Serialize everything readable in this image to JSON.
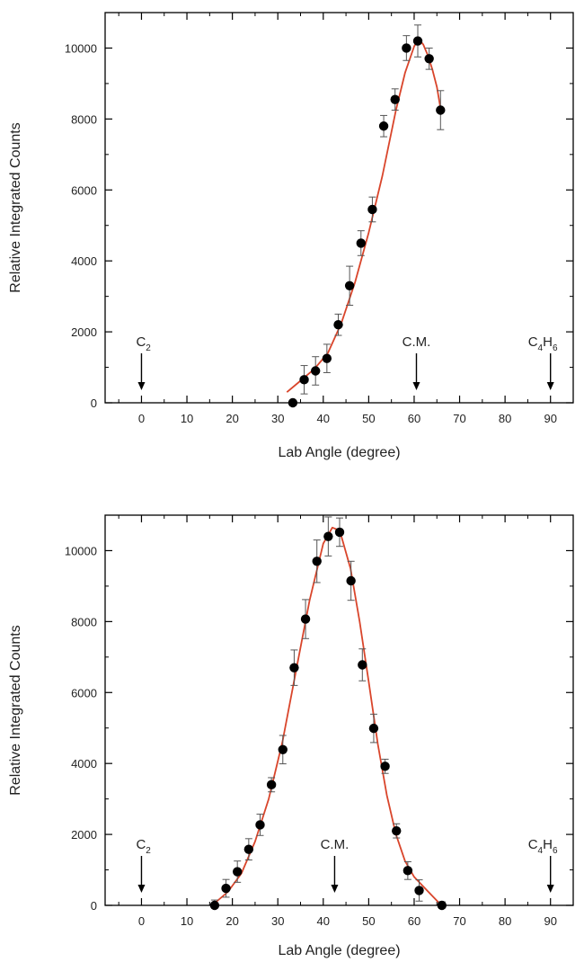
{
  "chart_data": [
    {
      "type": "scatter",
      "title": "",
      "xlabel": "Lab Angle (degree)",
      "ylabel": "Relative Integrated Counts",
      "xlim": [
        -8,
        95
      ],
      "ylim": [
        0,
        11000
      ],
      "xticks": [
        0,
        10,
        20,
        30,
        40,
        50,
        60,
        70,
        80,
        90
      ],
      "yticks": [
        0,
        2000,
        4000,
        6000,
        8000,
        10000
      ],
      "grid": false,
      "colors": {
        "points": "#000000",
        "fit": "#d9452b",
        "axes": "#000000"
      },
      "series": [
        {
          "kind": "points_with_error_bars",
          "x": [
            33.3,
            35.8,
            38.3,
            40.8,
            43.3,
            45.8,
            48.3,
            50.8,
            53.3,
            55.8,
            58.3,
            60.8,
            63.3,
            65.8
          ],
          "y": [
            0,
            650,
            900,
            1250,
            2200,
            3300,
            4500,
            5450,
            7800,
            8550,
            10000,
            10200,
            9700,
            8250
          ],
          "err": [
            0,
            400,
            400,
            400,
            300,
            550,
            350,
            350,
            300,
            300,
            350,
            450,
            300,
            550
          ]
        },
        {
          "kind": "fit_line",
          "x": [
            32,
            35,
            38,
            41,
            44,
            47,
            50,
            53,
            56,
            58,
            60,
            61,
            62,
            63,
            64,
            65,
            65.8
          ],
          "y": [
            300,
            620,
            950,
            1400,
            2250,
            3400,
            4800,
            6400,
            8250,
            9300,
            10050,
            10250,
            10100,
            9800,
            9400,
            8900,
            8300
          ]
        }
      ],
      "annotations": [
        {
          "main": "C",
          "sub": "2",
          "x": 0
        },
        {
          "main": "C.M.",
          "sub": "",
          "x": 60.5
        },
        {
          "main": "C",
          "sub": "4",
          "main2": "H",
          "sub2": "6",
          "x": 90
        }
      ]
    },
    {
      "type": "scatter",
      "title": "",
      "xlabel": "Lab Angle (degree)",
      "ylabel": "Relative Integrated Counts",
      "xlim": [
        -8,
        95
      ],
      "ylim": [
        0,
        11000
      ],
      "xticks": [
        0,
        10,
        20,
        30,
        40,
        50,
        60,
        70,
        80,
        90
      ],
      "yticks": [
        0,
        2000,
        4000,
        6000,
        8000,
        10000
      ],
      "grid": false,
      "colors": {
        "points": "#000000",
        "fit": "#d9452b",
        "axes": "#000000"
      },
      "series": [
        {
          "kind": "points_with_error_bars",
          "x": [
            16.1,
            18.6,
            21.1,
            23.6,
            26.1,
            28.6,
            31.1,
            33.6,
            36.1,
            38.6,
            41.1,
            43.6,
            46.1,
            48.6,
            51.1,
            53.6,
            56.1,
            58.6,
            61.1,
            66.1
          ],
          "y": [
            0,
            480,
            950,
            1580,
            2270,
            3400,
            4390,
            6700,
            8070,
            9700,
            10400,
            10520,
            9150,
            6780,
            4990,
            3920,
            2100,
            980,
            420,
            0
          ],
          "err": [
            150,
            250,
            300,
            300,
            300,
            200,
            400,
            500,
            550,
            600,
            550,
            400,
            550,
            450,
            400,
            200,
            200,
            250,
            300,
            100
          ]
        },
        {
          "kind": "fit_line",
          "x": [
            16,
            19,
            22,
            25,
            28,
            31,
            34,
            37,
            40,
            42,
            43,
            44,
            46,
            48,
            50,
            52,
            54,
            56,
            58,
            60,
            63,
            66
          ],
          "y": [
            50,
            380,
            900,
            1800,
            3000,
            4600,
            6600,
            8600,
            10200,
            10650,
            10600,
            10400,
            9500,
            8000,
            6300,
            4550,
            3100,
            2000,
            1250,
            800,
            400,
            0
          ]
        }
      ],
      "annotations": [
        {
          "main": "C",
          "sub": "2",
          "x": 0
        },
        {
          "main": "C.M.",
          "sub": "",
          "x": 42.5
        },
        {
          "main": "C",
          "sub": "4",
          "main2": "H",
          "sub2": "6",
          "x": 90
        }
      ]
    }
  ]
}
